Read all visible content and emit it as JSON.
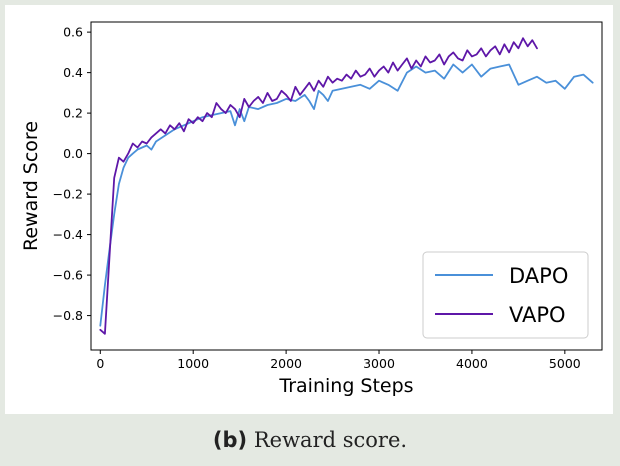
{
  "caption": {
    "tag": "(b)",
    "text": "Reward score."
  },
  "chart_data": {
    "type": "line",
    "xlabel": "Training Steps",
    "ylabel": "Reward Score",
    "xlim": [
      -100,
      5400
    ],
    "ylim": [
      -0.97,
      0.65
    ],
    "x_ticks": [
      0,
      1000,
      2000,
      3000,
      4000,
      5000
    ],
    "x_tick_labels": [
      "0",
      "1000",
      "2000",
      "3000",
      "4000",
      "5000"
    ],
    "y_ticks": [
      -0.8,
      -0.6,
      -0.4,
      -0.2,
      0.0,
      0.2,
      0.4,
      0.6
    ],
    "y_tick_labels": [
      "−0.8",
      "−0.6",
      "−0.4",
      "−0.2",
      "0.0",
      "0.2",
      "0.4",
      "0.6"
    ],
    "grid": false,
    "legend_position": "bottom-right",
    "series": [
      {
        "name": "DAPO",
        "color": "#4a90d9",
        "x": [
          0,
          50,
          100,
          150,
          200,
          250,
          300,
          350,
          400,
          450,
          500,
          550,
          600,
          700,
          800,
          900,
          1000,
          1100,
          1200,
          1300,
          1400,
          1450,
          1500,
          1550,
          1600,
          1700,
          1800,
          1900,
          2000,
          2100,
          2200,
          2250,
          2300,
          2350,
          2400,
          2450,
          2500,
          2600,
          2700,
          2800,
          2900,
          3000,
          3100,
          3200,
          3300,
          3400,
          3500,
          3600,
          3700,
          3800,
          3900,
          4000,
          4100,
          4200,
          4300,
          4400,
          4500,
          4600,
          4700,
          4800,
          4900,
          5000,
          5100,
          5200,
          5300
        ],
        "values": [
          -0.85,
          -0.65,
          -0.47,
          -0.3,
          -0.15,
          -0.07,
          -0.02,
          0.0,
          0.02,
          0.03,
          0.04,
          0.02,
          0.06,
          0.09,
          0.12,
          0.14,
          0.16,
          0.18,
          0.19,
          0.2,
          0.21,
          0.14,
          0.22,
          0.16,
          0.23,
          0.22,
          0.24,
          0.25,
          0.27,
          0.26,
          0.29,
          0.26,
          0.22,
          0.31,
          0.29,
          0.26,
          0.31,
          0.32,
          0.33,
          0.34,
          0.32,
          0.36,
          0.34,
          0.31,
          0.4,
          0.43,
          0.4,
          0.41,
          0.37,
          0.44,
          0.4,
          0.44,
          0.38,
          0.42,
          0.43,
          0.44,
          0.34,
          0.36,
          0.38,
          0.35,
          0.36,
          0.32,
          0.38,
          0.39,
          0.35
        ]
      },
      {
        "name": "VAPO",
        "color": "#5e17a8",
        "x": [
          0,
          50,
          100,
          150,
          200,
          250,
          300,
          350,
          400,
          450,
          500,
          550,
          600,
          650,
          700,
          750,
          800,
          850,
          900,
          950,
          1000,
          1050,
          1100,
          1150,
          1200,
          1250,
          1300,
          1350,
          1400,
          1450,
          1500,
          1550,
          1600,
          1650,
          1700,
          1750,
          1800,
          1850,
          1900,
          1950,
          2000,
          2050,
          2100,
          2150,
          2200,
          2250,
          2300,
          2350,
          2400,
          2450,
          2500,
          2550,
          2600,
          2650,
          2700,
          2750,
          2800,
          2850,
          2900,
          2950,
          3000,
          3050,
          3100,
          3150,
          3200,
          3250,
          3300,
          3350,
          3400,
          3450,
          3500,
          3550,
          3600,
          3650,
          3700,
          3750,
          3800,
          3850,
          3900,
          3950,
          4000,
          4050,
          4100,
          4150,
          4200,
          4250,
          4300,
          4350,
          4400,
          4450,
          4500,
          4550,
          4600,
          4650,
          4700
        ],
        "values": [
          -0.87,
          -0.89,
          -0.5,
          -0.12,
          -0.02,
          -0.04,
          0.0,
          0.05,
          0.03,
          0.06,
          0.05,
          0.08,
          0.1,
          0.12,
          0.1,
          0.14,
          0.12,
          0.15,
          0.11,
          0.17,
          0.15,
          0.18,
          0.16,
          0.2,
          0.18,
          0.25,
          0.22,
          0.2,
          0.24,
          0.22,
          0.18,
          0.27,
          0.23,
          0.26,
          0.28,
          0.25,
          0.3,
          0.26,
          0.27,
          0.31,
          0.29,
          0.26,
          0.33,
          0.29,
          0.32,
          0.35,
          0.31,
          0.36,
          0.33,
          0.38,
          0.35,
          0.37,
          0.36,
          0.39,
          0.37,
          0.41,
          0.38,
          0.39,
          0.42,
          0.38,
          0.41,
          0.43,
          0.4,
          0.45,
          0.41,
          0.44,
          0.47,
          0.42,
          0.46,
          0.43,
          0.48,
          0.45,
          0.46,
          0.49,
          0.44,
          0.48,
          0.5,
          0.47,
          0.46,
          0.51,
          0.48,
          0.49,
          0.52,
          0.48,
          0.51,
          0.53,
          0.49,
          0.54,
          0.5,
          0.55,
          0.52,
          0.57,
          0.53,
          0.56,
          0.52
        ]
      }
    ]
  }
}
